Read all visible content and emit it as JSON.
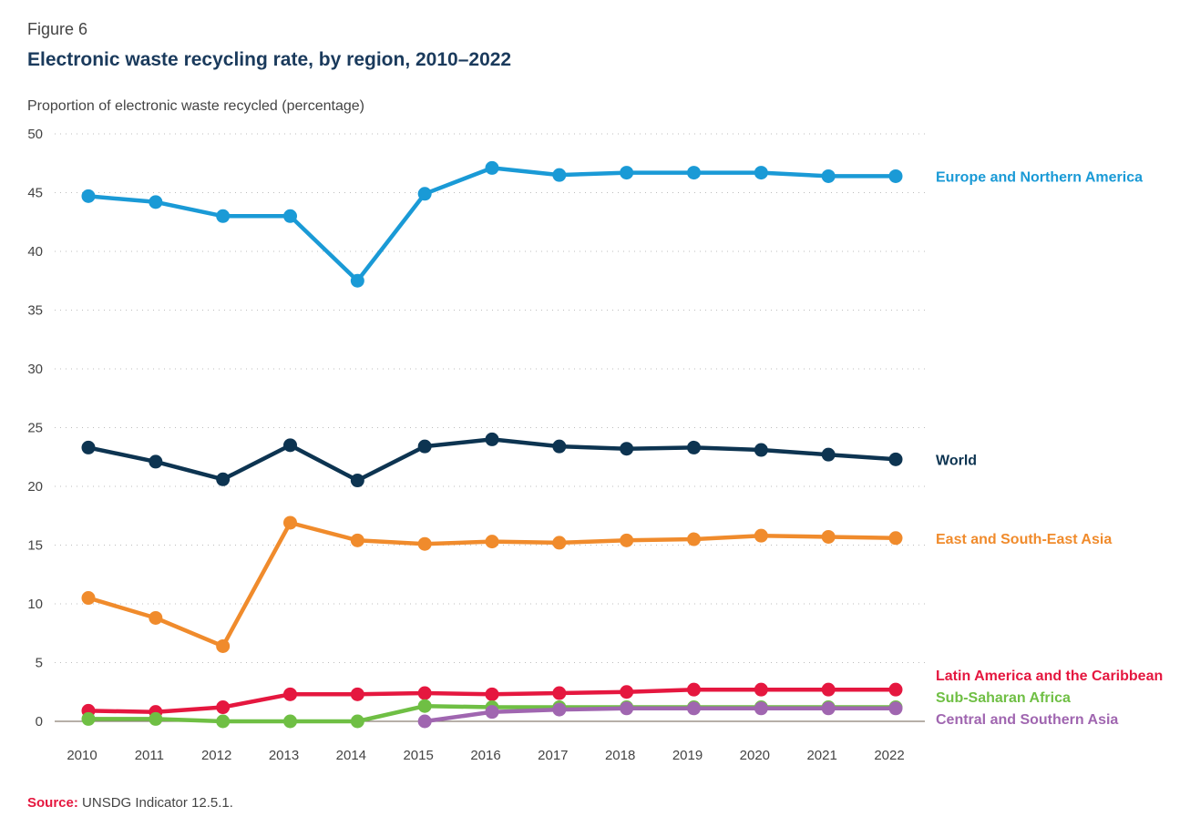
{
  "figure_label": "Figure 6",
  "title": "Electronic waste recycling rate, by region, 2010–2022",
  "ylabel": "Proportion of electronic waste recycled (percentage)",
  "source": {
    "label": "Source:",
    "text": " UNSDG Indicator 12.5.1."
  },
  "chart_data": {
    "type": "line",
    "title": "Electronic waste recycling rate, by region, 2010–2022",
    "xlabel": "",
    "ylabel": "Proportion of electronic waste recycled (percentage)",
    "x": [
      "2010",
      "2011",
      "2012",
      "2013",
      "2014",
      "2015",
      "2016",
      "2017",
      "2018",
      "2019",
      "2020",
      "2021",
      "2022"
    ],
    "ylim": [
      0,
      50
    ],
    "yticks": [
      0,
      5,
      10,
      15,
      20,
      25,
      30,
      35,
      40,
      45,
      50
    ],
    "grid": true,
    "legend": "right-inline-labels",
    "series": [
      {
        "name": "Europe and Northern America",
        "color": "#1a9ad6",
        "values": [
          44.7,
          44.2,
          43.0,
          43.0,
          37.5,
          44.9,
          47.1,
          46.5,
          46.7,
          46.7,
          46.7,
          46.4,
          46.4
        ]
      },
      {
        "name": "World",
        "color": "#0d3451",
        "values": [
          23.3,
          22.1,
          20.6,
          23.5,
          20.5,
          23.4,
          24.0,
          23.4,
          23.2,
          23.3,
          23.1,
          22.7,
          22.3
        ]
      },
      {
        "name": "East and South-East Asia",
        "color": "#f08b2c",
        "values": [
          10.5,
          8.8,
          6.4,
          16.9,
          15.4,
          15.1,
          15.3,
          15.2,
          15.4,
          15.5,
          15.8,
          15.7,
          15.6
        ]
      },
      {
        "name": "Latin America and the Caribbean",
        "color": "#e5173f",
        "values": [
          0.9,
          0.8,
          1.2,
          2.3,
          2.3,
          2.4,
          2.3,
          2.4,
          2.5,
          2.7,
          2.7,
          2.7,
          2.7
        ]
      },
      {
        "name": "Sub-Saharan Africa",
        "color": "#6fbf44",
        "values": [
          0.2,
          0.2,
          0.0,
          0.0,
          0.0,
          1.3,
          1.2,
          1.2,
          1.2,
          1.2,
          1.2,
          1.2,
          1.2
        ]
      },
      {
        "name": "Central and Southern Asia",
        "color": "#a066b0",
        "values": [
          null,
          null,
          null,
          null,
          null,
          0.0,
          0.8,
          1.0,
          1.1,
          1.1,
          1.1,
          1.1,
          1.1
        ]
      }
    ]
  }
}
